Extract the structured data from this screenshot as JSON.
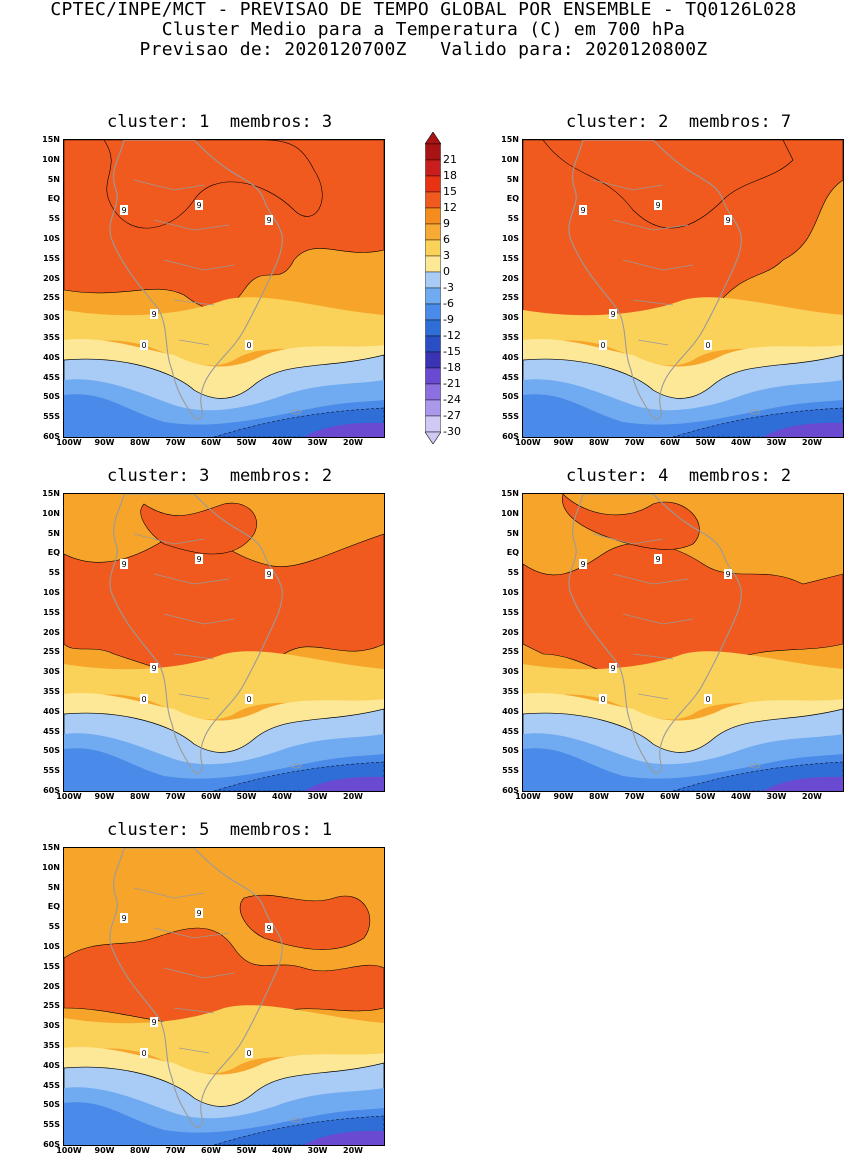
{
  "header": {
    "line1": "CPTEC/INPE/MCT - PREVISAO DE TEMPO GLOBAL POR ENSEMBLE - TQ0126L028",
    "line2": "Cluster Medio para a Temperatura (C) em 700 hPa",
    "line3": "Previsao de: 2020120700Z   Valido para: 2020120800Z"
  },
  "panels": [
    {
      "title": "cluster: 1  membros: 3"
    },
    {
      "title": "cluster: 2  membros: 7"
    },
    {
      "title": "cluster: 3  membros: 2"
    },
    {
      "title": "cluster: 4  membros: 2"
    },
    {
      "title": "cluster: 5  membros: 1"
    }
  ],
  "axes": {
    "lat_labels": [
      "15N",
      "10N",
      "5N",
      "EQ",
      "5S",
      "10S",
      "15S",
      "20S",
      "25S",
      "30S",
      "35S",
      "40S",
      "45S",
      "50S",
      "55S",
      "60S"
    ],
    "lon_labels": [
      "100W",
      "90W",
      "80W",
      "70W",
      "60W",
      "50W",
      "40W",
      "30W",
      "20W"
    ]
  },
  "contour_labels": [
    "9",
    "0"
  ],
  "colorbar": {
    "levels": [
      "21",
      "18",
      "15",
      "12",
      "9",
      "6",
      "3",
      "0",
      "-3",
      "-6",
      "-9",
      "-12",
      "-15",
      "-18",
      "-21",
      "-24",
      "-27",
      "-30"
    ],
    "colors": [
      "#a81414",
      "#c81e1e",
      "#e83214",
      "#f05a1e",
      "#f58c1e",
      "#f7ab35",
      "#fad25a",
      "#fde898",
      "#a8ccf5",
      "#70aaf0",
      "#4a8ae8",
      "#2e6ed6",
      "#2a4fc4",
      "#3a34b4",
      "#6a4ad0",
      "#8c70e0",
      "#ac98ea",
      "#d2c8f5"
    ]
  },
  "palette": {
    "ocean_outline": "#000000",
    "coast": "#9a9a9a",
    "warm": "#f05a1e",
    "mid": "#f7a52a",
    "cool_mid": "#fad25a",
    "pale": "#fde898",
    "blue1": "#a8ccf5",
    "blue2": "#70aaf0",
    "blue3": "#4a8ae8",
    "violet": "#6a4ad0"
  }
}
